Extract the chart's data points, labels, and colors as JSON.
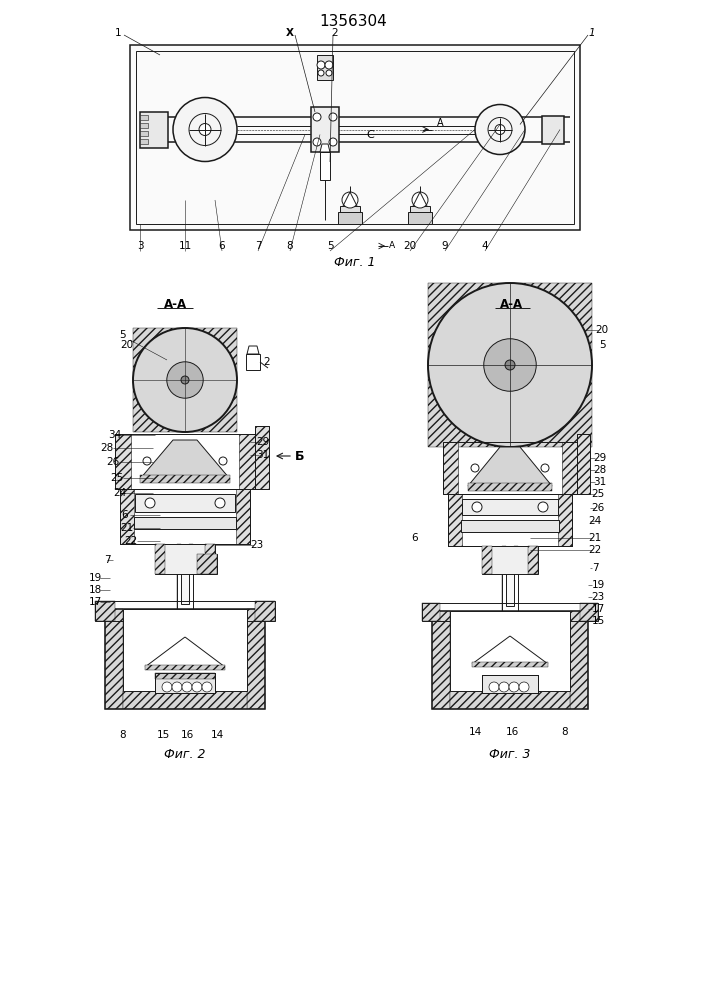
{
  "title": "1356304",
  "bg_color": "#ffffff",
  "line_color": "#1a1a1a",
  "fig1_caption": "Фиг. 1",
  "fig2_caption": "Фиг. 2",
  "fig3_caption": "Фиг. 3",
  "label_AA": "А-А",
  "label_B": "Б",
  "title_fontsize": 11,
  "caption_fontsize": 9,
  "ann_fs": 7.5
}
